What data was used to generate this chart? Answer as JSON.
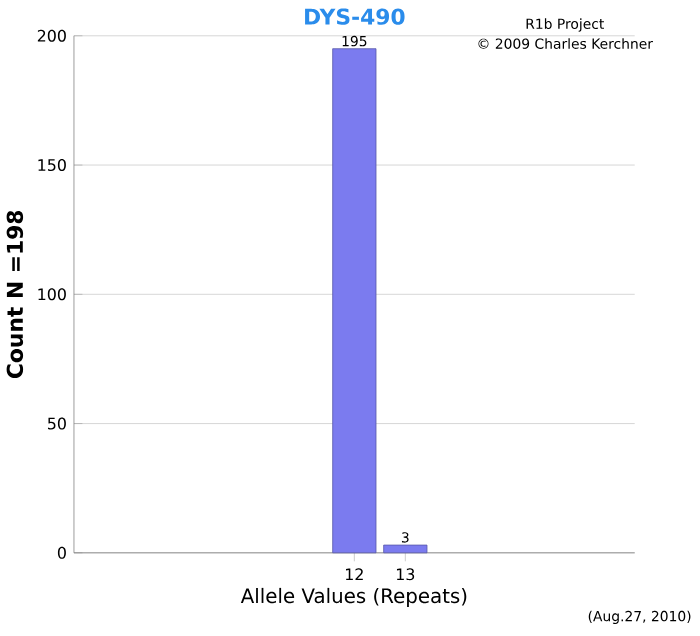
{
  "chart_data": {
    "type": "bar",
    "title": "DYS-490",
    "xlabel": "Allele Values (Repeats)",
    "ylabel": "Count N =198",
    "categories": [
      null,
      null,
      null,
      null,
      null,
      "12",
      "13",
      null,
      null,
      null,
      null
    ],
    "values": [
      null,
      null,
      null,
      null,
      null,
      195,
      3,
      null,
      null,
      null,
      null
    ],
    "color": "#7b7bef",
    "data_labels": true,
    "ylim": [
      0,
      200
    ],
    "yticks": [
      0,
      50,
      100,
      150,
      200
    ],
    "grid": "y",
    "annotations": [
      "R1b Project",
      "© 2009 Charles Kerchner",
      "(Aug.27, 2010)"
    ]
  }
}
